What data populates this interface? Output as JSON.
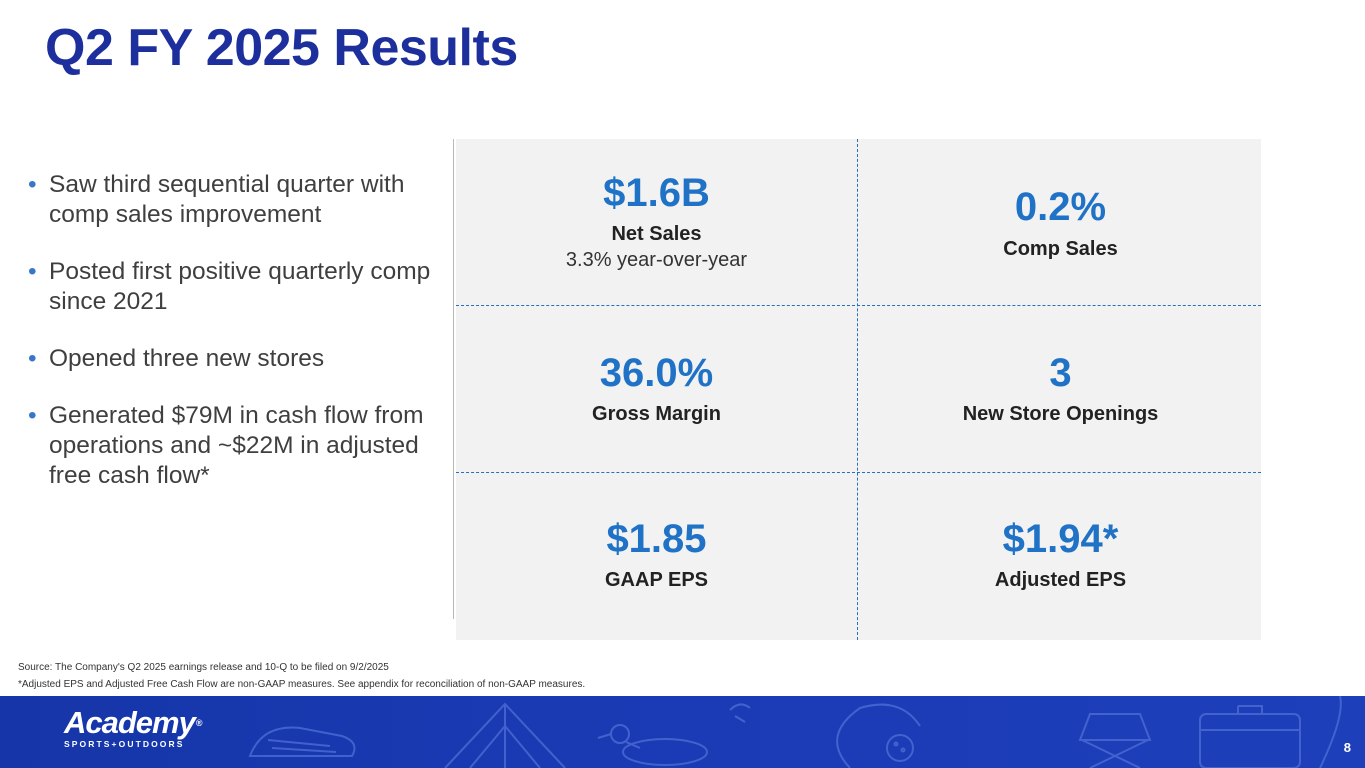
{
  "slide": {
    "title": "Q2 FY 2025 Results",
    "page_number": "8",
    "accent_color": "#1d2f9c",
    "value_color": "#1f72c6"
  },
  "bullets": [
    "Saw third sequential quarter with comp sales improvement",
    "Posted first positive quarterly comp since 2021",
    "Opened three new stores",
    "Generated $79M in cash flow from operations and ~$22M in adjusted free cash flow*"
  ],
  "metrics": {
    "net_sales": {
      "value": "$1.6B",
      "label": "Net Sales",
      "sub": "3.3% year-over-year"
    },
    "comp_sales": {
      "value": "0.2%",
      "label": "Comp Sales"
    },
    "gross_margin": {
      "value": "36.0%",
      "label": "Gross Margin"
    },
    "new_stores": {
      "value": "3",
      "label": "New Store Openings"
    },
    "gaap_eps": {
      "value": "$1.85",
      "label": "GAAP EPS"
    },
    "adjusted_eps": {
      "value": "$1.94*",
      "label": "Adjusted EPS"
    }
  },
  "footnotes": {
    "source": "Source: The Company's Q2 2025 earnings release and 10-Q to be filed on 9/2/2025",
    "note": "*Adjusted EPS and Adjusted Free Cash Flow are non-GAAP measures. See appendix for reconciliation of non-GAAP measures."
  },
  "footer": {
    "brand": "Academy",
    "registered_mark": "®",
    "tagline": "SPORTS+OUTDOORS",
    "icons": [
      "sneaker-icon",
      "tent-icon",
      "duck-icon",
      "golf-ball-icon",
      "camp-chair-icon",
      "cooler-icon"
    ]
  }
}
